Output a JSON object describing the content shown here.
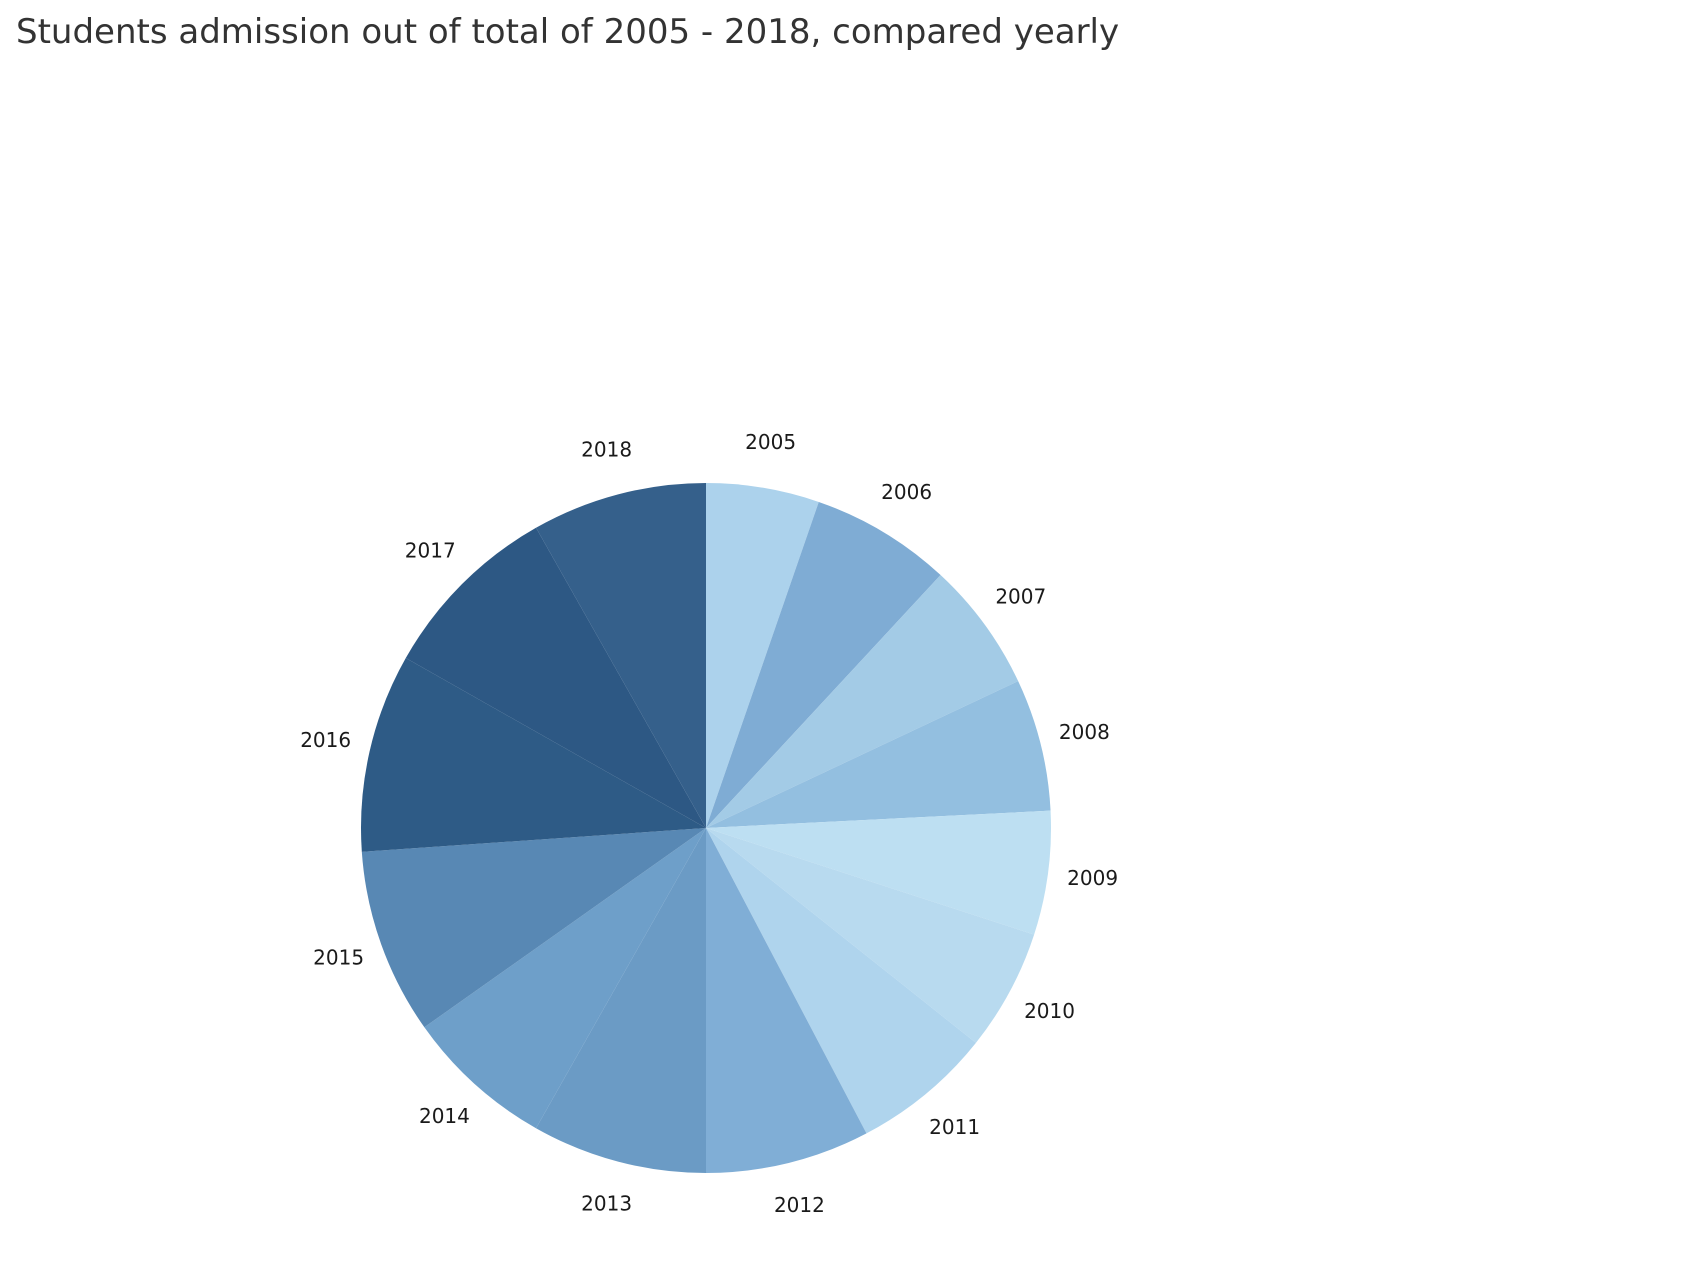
{
  "chart_data": {
    "type": "pie",
    "title": "Students admission out of total of 2005 - 2018, compared yearly",
    "start_angle": "12 o'clock",
    "direction": "clockwise",
    "slices": [
      {
        "label": "2005",
        "value": 5.3,
        "color": "#acd2ec"
      },
      {
        "label": "2006",
        "value": 6.6,
        "color": "#7facd4"
      },
      {
        "label": "2007",
        "value": 6.1,
        "color": "#a3cbe6"
      },
      {
        "label": "2008",
        "value": 6.2,
        "color": "#93bfe0"
      },
      {
        "label": "2009",
        "value": 5.8,
        "color": "#bddff2"
      },
      {
        "label": "2010",
        "value": 5.7,
        "color": "#b8daef"
      },
      {
        "label": "2011",
        "value": 6.6,
        "color": "#afd4ed"
      },
      {
        "label": "2012",
        "value": 7.7,
        "color": "#80aed6"
      },
      {
        "label": "2013",
        "value": 8.2,
        "color": "#6b9bc5"
      },
      {
        "label": "2014",
        "value": 7.0,
        "color": "#6e9fc9"
      },
      {
        "label": "2015",
        "value": 8.7,
        "color": "#5888b4"
      },
      {
        "label": "2016",
        "value": 9.3,
        "color": "#2e5b86"
      },
      {
        "label": "2017",
        "value": 8.6,
        "color": "#2d5884"
      },
      {
        "label": "2018",
        "value": 8.2,
        "color": "#35608b"
      }
    ]
  }
}
